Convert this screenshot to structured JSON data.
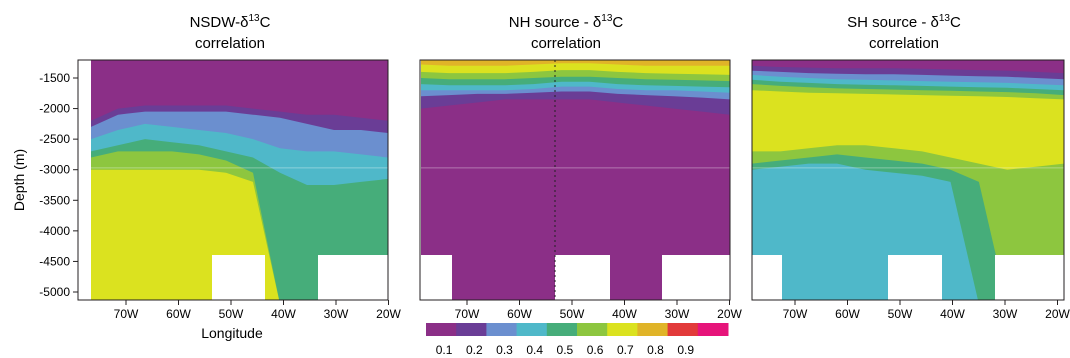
{
  "palette": [
    "#8b2f87",
    "#6a3d96",
    "#6b8fcf",
    "#4fb8c9",
    "#46ad7a",
    "#8dc63f",
    "#dbe21f",
    "#e0b428",
    "#e23a3a",
    "#e6147a"
  ],
  "chart_data": [
    {
      "type": "heatmap",
      "title_line1": "NSDW-δ",
      "title_sup": "13",
      "title_line1_end": "C",
      "title_line2": "correlation",
      "xlabel": "Longitude",
      "ylabel": "Depth (m)",
      "xticks": [
        "70W",
        "60W",
        "50W",
        "40W",
        "30W",
        "20W"
      ],
      "yticks": [
        "-1500",
        "-2000",
        "-2500",
        "-3000",
        "-3500",
        "-4000",
        "-4500",
        "-5000"
      ],
      "bands": [
        {
          "value": 0.1,
          "top": [
            -1200,
            -1200,
            -1200,
            -1200,
            -1200,
            -1200,
            -1200,
            -1200,
            -1200,
            -1200,
            -1200,
            -1200
          ]
        },
        {
          "value": 0.2,
          "top": [
            -2200,
            -2000,
            -1950,
            -1950,
            -1950,
            -1950,
            -2000,
            -2050,
            -2100,
            -2100,
            -2150,
            -2200
          ]
        },
        {
          "value": 0.3,
          "top": [
            -2300,
            -2100,
            -2050,
            -2050,
            -2050,
            -2050,
            -2100,
            -2150,
            -2250,
            -2350,
            -2350,
            -2400
          ]
        },
        {
          "value": 0.4,
          "top": [
            -2500,
            -2350,
            -2250,
            -2300,
            -2350,
            -2400,
            -2500,
            -2650,
            -2700,
            -2700,
            -2750,
            -2800
          ]
        },
        {
          "value": 0.5,
          "top": [
            -2700,
            -2600,
            -2500,
            -2550,
            -2600,
            -2700,
            -2800,
            -3050,
            -3250,
            -3250,
            -3200,
            -3150
          ]
        },
        {
          "value": 0.6,
          "top": [
            -2800,
            -2700,
            -2700,
            -2700,
            -2750,
            -2850,
            -3050,
            -5200,
            -5200,
            -5200,
            -5200,
            -5200
          ]
        },
        {
          "value": 0.7,
          "top": [
            -3000,
            -3000,
            -3000,
            -3000,
            -3000,
            -3050,
            -3200,
            -5200,
            -5200,
            -5200,
            -5200,
            -5200
          ]
        }
      ],
      "bottom_depth": -5200
    },
    {
      "type": "heatmap",
      "title_line1": "NH source - δ",
      "title_sup": "13",
      "title_line1_end": "C",
      "title_line2": "correlation",
      "xlabel": "",
      "ylabel": "",
      "xticks": [
        "70W",
        "60W",
        "50W",
        "40W",
        "30W",
        "20W"
      ],
      "yticks": [],
      "bands": [
        {
          "value": 0.8,
          "top": [
            -1200,
            -1200,
            -1200,
            -1200,
            -1200,
            -1200,
            -1200,
            -1200,
            -1200,
            -1200,
            -1200,
            -1200
          ]
        },
        {
          "value": 0.7,
          "top": [
            -1280,
            -1300,
            -1300,
            -1300,
            -1280,
            -1260,
            -1260,
            -1280,
            -1300,
            -1300,
            -1300,
            -1300
          ]
        },
        {
          "value": 0.6,
          "top": [
            -1400,
            -1420,
            -1420,
            -1420,
            -1400,
            -1370,
            -1370,
            -1400,
            -1420,
            -1430,
            -1440,
            -1450
          ]
        },
        {
          "value": 0.5,
          "top": [
            -1500,
            -1520,
            -1520,
            -1520,
            -1500,
            -1480,
            -1480,
            -1500,
            -1520,
            -1530,
            -1540,
            -1550
          ]
        },
        {
          "value": 0.4,
          "top": [
            -1600,
            -1620,
            -1620,
            -1620,
            -1600,
            -1560,
            -1560,
            -1600,
            -1620,
            -1630,
            -1640,
            -1650
          ]
        },
        {
          "value": 0.3,
          "top": [
            -1700,
            -1700,
            -1700,
            -1700,
            -1680,
            -1640,
            -1640,
            -1680,
            -1700,
            -1700,
            -1720,
            -1740
          ]
        },
        {
          "value": 0.2,
          "top": [
            -1800,
            -1780,
            -1760,
            -1760,
            -1740,
            -1720,
            -1720,
            -1760,
            -1780,
            -1800,
            -1820,
            -1850
          ]
        },
        {
          "value": 0.1,
          "top": [
            -2000,
            -1950,
            -1900,
            -1850,
            -1850,
            -1850,
            -1850,
            -1900,
            -1950,
            -2000,
            -2050,
            -2100
          ]
        }
      ],
      "bottom_depth": -5200
    },
    {
      "type": "heatmap",
      "title_line1": "SH source - δ",
      "title_sup": "13",
      "title_line1_end": "C",
      "title_line2": "correlation",
      "xlabel": "",
      "ylabel": "",
      "xticks": [
        "70W",
        "60W",
        "50W",
        "40W",
        "30W",
        "20W"
      ],
      "yticks": [],
      "bands": [
        {
          "value": 0.1,
          "top": [
            -1200,
            -1200,
            -1200,
            -1200,
            -1200,
            -1200,
            -1200,
            -1200,
            -1200,
            -1200,
            -1200,
            -1200
          ]
        },
        {
          "value": 0.2,
          "top": [
            -1300,
            -1320,
            -1330,
            -1340,
            -1340,
            -1340,
            -1350,
            -1360,
            -1370,
            -1380,
            -1400,
            -1420
          ]
        },
        {
          "value": 0.3,
          "top": [
            -1380,
            -1400,
            -1420,
            -1430,
            -1440,
            -1440,
            -1450,
            -1460,
            -1470,
            -1480,
            -1500,
            -1520
          ]
        },
        {
          "value": 0.4,
          "top": [
            -1450,
            -1480,
            -1500,
            -1520,
            -1530,
            -1540,
            -1550,
            -1560,
            -1570,
            -1580,
            -1600,
            -1620
          ]
        },
        {
          "value": 0.5,
          "top": [
            -1530,
            -1560,
            -1580,
            -1600,
            -1610,
            -1620,
            -1630,
            -1640,
            -1650,
            -1660,
            -1680,
            -1700
          ]
        },
        {
          "value": 0.6,
          "top": [
            -1600,
            -1630,
            -1650,
            -1670,
            -1680,
            -1690,
            -1700,
            -1710,
            -1720,
            -1730,
            -1750,
            -1780
          ]
        },
        {
          "value": 0.7,
          "top": [
            -1700,
            -1720,
            -1740,
            -1750,
            -1760,
            -1770,
            -1780,
            -1790,
            -1800,
            -1810,
            -1830,
            -1850
          ]
        },
        {
          "value": 0.6,
          "top": [
            -2700,
            -2700,
            -2650,
            -2600,
            -2600,
            -2650,
            -2700,
            -2800,
            -2900,
            -3000,
            -2950,
            -2900
          ]
        },
        {
          "value": 0.5,
          "top": [
            -2900,
            -2850,
            -2800,
            -2750,
            -2800,
            -2850,
            -2900,
            -3000,
            -3200,
            -5200,
            -5200,
            -5200
          ]
        },
        {
          "value": 0.4,
          "top": [
            -3000,
            -2950,
            -2900,
            -2900,
            -3000,
            -3050,
            -3100,
            -3200,
            -5200,
            -5200,
            -5200,
            -5200
          ]
        }
      ],
      "bottom_depth": -5200
    }
  ],
  "colorbar": {
    "labels": [
      "0.1",
      "0.2",
      "0.3",
      "0.4",
      "0.5",
      "0.6",
      "0.7",
      "0.8",
      "0.9"
    ]
  }
}
